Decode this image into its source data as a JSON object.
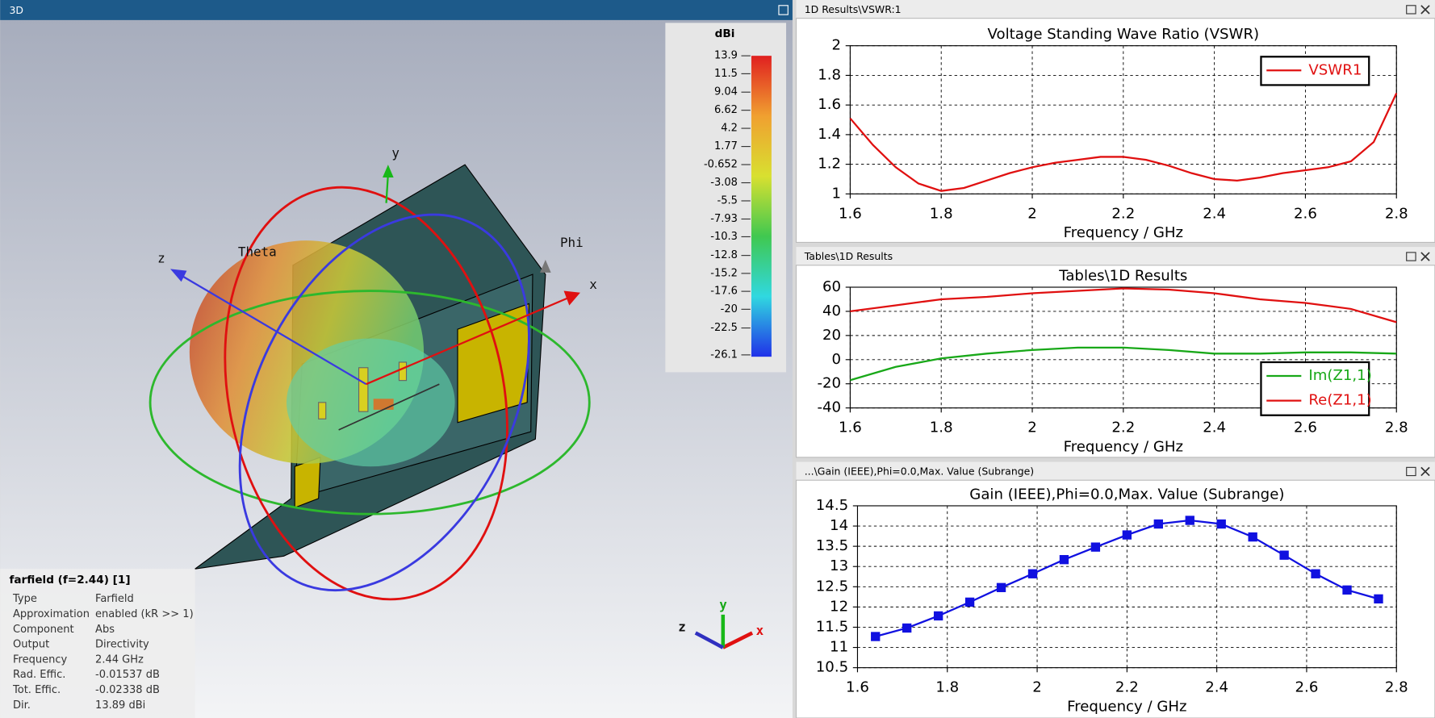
{
  "panels": [
    {
      "title": "3D"
    },
    {
      "title": "1D Results\\VSWR:1"
    },
    {
      "title": "Tables\\1D Results"
    },
    {
      "title": "...\\Gain (IEEE),Phi=0.0,Max. Value (Subrange)"
    }
  ],
  "view3d": {
    "axis_labels": {
      "y": "y",
      "z": "z",
      "theta": "Theta",
      "phi": "Phi",
      "x": "x"
    },
    "triad_labels": {
      "z": "z",
      "y": "y",
      "x": "x"
    },
    "colorbar": {
      "title": "dBi",
      "ticks": [
        13.9,
        11.5,
        9.04,
        6.62,
        4.2,
        1.77,
        -0.652,
        -3.08,
        -5.5,
        -7.93,
        -10.3,
        -12.8,
        -15.2,
        -17.6,
        -20,
        -22.5,
        -26.1
      ]
    },
    "info": {
      "title": "farfield (f=2.44) [1]",
      "rows": [
        [
          "Type",
          "Farfield"
        ],
        [
          "Approximation",
          "enabled (kR >> 1)"
        ],
        [
          "Component",
          "Abs"
        ],
        [
          "Output",
          "Directivity"
        ],
        [
          "Frequency",
          "2.44 GHz"
        ],
        [
          "Rad. Effic.",
          "-0.01537 dB"
        ],
        [
          "Tot. Effic.",
          "-0.02338 dB"
        ],
        [
          "Dir.",
          "13.89 dBi"
        ]
      ]
    }
  },
  "chart_data": [
    {
      "type": "line",
      "title": "Voltage Standing Wave Ratio (VSWR)",
      "x_label": "Frequency / GHz",
      "x": [
        1.6,
        1.65,
        1.7,
        1.75,
        1.8,
        1.85,
        1.9,
        1.95,
        2.0,
        2.05,
        2.1,
        2.15,
        2.2,
        2.25,
        2.3,
        2.35,
        2.4,
        2.45,
        2.5,
        2.55,
        2.6,
        2.65,
        2.7,
        2.75,
        2.8
      ],
      "series": [
        {
          "name": "VSWR1",
          "color": "#e01010",
          "values": [
            1.51,
            1.33,
            1.18,
            1.07,
            1.02,
            1.04,
            1.09,
            1.14,
            1.18,
            1.21,
            1.23,
            1.25,
            1.25,
            1.23,
            1.19,
            1.14,
            1.1,
            1.09,
            1.11,
            1.14,
            1.16,
            1.18,
            1.22,
            1.35,
            1.68
          ]
        }
      ],
      "xlim": [
        1.6,
        2.8
      ],
      "xticks": [
        1.6,
        1.8,
        2,
        2.2,
        2.4,
        2.6,
        2.8
      ],
      "ylim": [
        1,
        2
      ],
      "yticks": [
        1,
        1.2,
        1.4,
        1.6,
        1.8,
        2
      ],
      "grid": true,
      "legend": "upper right"
    },
    {
      "type": "line",
      "title": "Tables\\1D Results",
      "x_label": "Frequency / GHz",
      "x": [
        1.6,
        1.7,
        1.8,
        1.9,
        2.0,
        2.1,
        2.2,
        2.3,
        2.4,
        2.5,
        2.6,
        2.7,
        2.8
      ],
      "series": [
        {
          "name": "Im(Z1,1)",
          "color": "#18a818",
          "values": [
            -17,
            -6,
            1,
            5,
            8,
            10,
            10,
            8,
            5,
            5,
            6,
            6,
            5
          ]
        },
        {
          "name": "Re(Z1,1)",
          "color": "#e01010",
          "values": [
            40,
            45,
            50,
            52,
            55,
            57,
            59,
            58,
            55,
            50,
            47,
            42,
            31
          ]
        }
      ],
      "xlim": [
        1.6,
        2.8
      ],
      "xticks": [
        1.6,
        1.8,
        2,
        2.2,
        2.4,
        2.6,
        2.8
      ],
      "ylim": [
        -40,
        60
      ],
      "yticks": [
        -40,
        -20,
        0,
        20,
        40,
        60
      ],
      "grid": true,
      "legend": "lower right"
    },
    {
      "type": "line",
      "title": "Gain (IEEE),Phi=0.0,Max. Value (Subrange)",
      "x_label": "Frequency / GHz",
      "x": [
        1.64,
        1.71,
        1.78,
        1.85,
        1.92,
        1.99,
        2.06,
        2.13,
        2.2,
        2.27,
        2.34,
        2.41,
        2.48,
        2.55,
        2.62,
        2.69,
        2.76
      ],
      "series": [
        {
          "color": "#1010e0",
          "marker": "square",
          "values": [
            11.27,
            11.48,
            11.78,
            12.12,
            12.48,
            12.82,
            13.17,
            13.48,
            13.78,
            14.05,
            14.14,
            14.05,
            13.73,
            13.28,
            12.82,
            12.42,
            12.2
          ]
        }
      ],
      "xlim": [
        1.6,
        2.8
      ],
      "xticks": [
        1.6,
        1.8,
        2,
        2.2,
        2.4,
        2.6,
        2.8
      ],
      "ylim": [
        10.5,
        14.5
      ],
      "yticks": [
        10.5,
        11,
        11.5,
        12,
        12.5,
        13,
        13.5,
        14,
        14.5
      ],
      "grid": true
    }
  ]
}
